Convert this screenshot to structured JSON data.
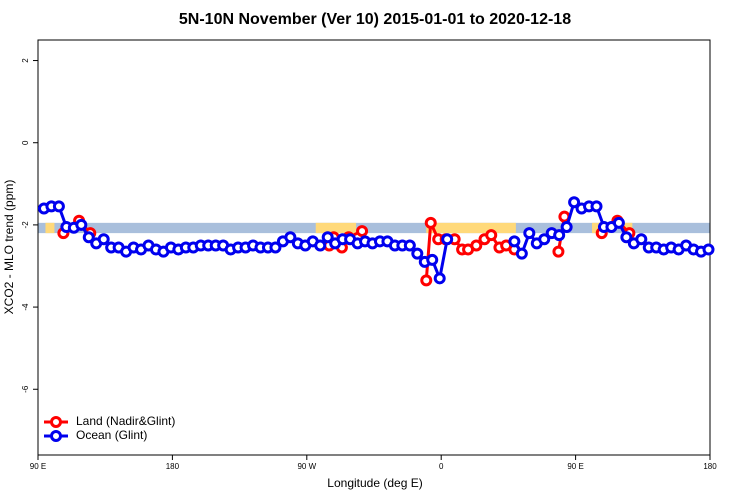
{
  "chart_data": {
    "type": "line",
    "title": "5N-10N November (Ver 10)   2015-01-01 to 2020-12-18",
    "x_label": "Longitude (deg E)",
    "y_label": "XCO2 - MLO trend (ppm)",
    "xlim": [
      90,
      540
    ],
    "ylim": [
      -7.6,
      2.5
    ],
    "xticks": [
      {
        "value": 90,
        "label": "90 E"
      },
      180,
      {
        "value": 270,
        "label": "90 W"
      },
      {
        "value": 360,
        "label": "0"
      },
      {
        "value": 450,
        "label": "90 E"
      },
      {
        "value": 540,
        "label": "180"
      }
    ],
    "yticks": [
      2,
      0,
      -2,
      -4,
      -6
    ],
    "legend": "bottom-left",
    "band": {
      "y": [
        -2.2,
        -1.95
      ],
      "color": "#a9bfdc",
      "land_color": "#ffd97a",
      "land_spans": [
        [
          95,
          101
        ],
        [
          276,
          303
        ],
        [
          350,
          410
        ],
        [
          461,
          467
        ],
        [
          481,
          488
        ]
      ]
    },
    "series": [
      {
        "name": "Land (Nadir&Glint)",
        "color": "#ff0000",
        "x": [
          107,
          117.5,
          125,
          null,
          285,
          288,
          293.5,
          298,
          307,
          null,
          350,
          353,
          358,
          363,
          369,
          374,
          378,
          383.5,
          389,
          393.5,
          399,
          403.5,
          409,
          null,
          438.5,
          442.5,
          null,
          467.5,
          null,
          478,
          486
        ],
        "values": [
          -2.2,
          -1.9,
          -2.2,
          null,
          -2.5,
          -2.3,
          -2.55,
          -2.3,
          -2.15,
          null,
          -3.35,
          -1.95,
          -2.35,
          -2.35,
          -2.35,
          -2.6,
          -2.6,
          -2.5,
          -2.35,
          -2.25,
          -2.55,
          -2.5,
          -2.6,
          null,
          -2.65,
          -1.8,
          null,
          -2.2,
          null,
          -1.9,
          -2.2
        ]
      },
      {
        "name": "Ocean (Glint)",
        "color": "#0000ee",
        "x": [
          94,
          99,
          104,
          109,
          114,
          119,
          124,
          129,
          134,
          139,
          144,
          149,
          154,
          159,
          164,
          169,
          174,
          179,
          184,
          189,
          194,
          199,
          204,
          209,
          214,
          219,
          224,
          229,
          234,
          239,
          244,
          249,
          254,
          259,
          264,
          269,
          274,
          279,
          284,
          289,
          294,
          299,
          304,
          309,
          314,
          319,
          324,
          329,
          334,
          339,
          344,
          349,
          354,
          359,
          364,
          369,
          374,
          379,
          384,
          389,
          394,
          399,
          404,
          409,
          414,
          419,
          424,
          429,
          434,
          439,
          444,
          449,
          454,
          459,
          464,
          469,
          474,
          479,
          484,
          489,
          494,
          499,
          504,
          509,
          514,
          519,
          524,
          529,
          534,
          539
        ],
        "values": [
          -1.6,
          -1.55,
          -1.55,
          -2.05,
          -2.07,
          -2.0,
          -2.3,
          -2.45,
          -2.35,
          -2.55,
          -2.55,
          -2.65,
          -2.55,
          -2.6,
          -2.5,
          -2.6,
          -2.65,
          -2.55,
          -2.6,
          -2.55,
          -2.55,
          -2.5,
          -2.5,
          -2.5,
          -2.5,
          -2.6,
          -2.55,
          -2.55,
          -2.5,
          -2.55,
          -2.55,
          -2.55,
          -2.4,
          -2.3,
          -2.45,
          -2.5,
          -2.4,
          -2.5,
          -2.3,
          -2.45,
          -2.35,
          -2.35,
          -2.45,
          -2.4,
          -2.45,
          -2.4,
          -2.4,
          -2.5,
          -2.5,
          -2.5,
          -2.7,
          -2.9,
          -2.85,
          -3.3,
          -2.35,
          null,
          null,
          null,
          null,
          null,
          null,
          null,
          null,
          -2.4,
          -2.7,
          -2.2,
          -2.45,
          -2.35,
          -2.2,
          -2.25,
          -2.05,
          -1.45,
          -1.6,
          -1.55,
          -1.55,
          -2.05,
          -2.05,
          -1.95,
          -2.3,
          -2.45,
          -2.35,
          -2.55,
          -2.55,
          -2.6,
          -2.55,
          -2.6,
          -2.5,
          -2.6,
          -2.65,
          -2.6
        ]
      }
    ]
  }
}
